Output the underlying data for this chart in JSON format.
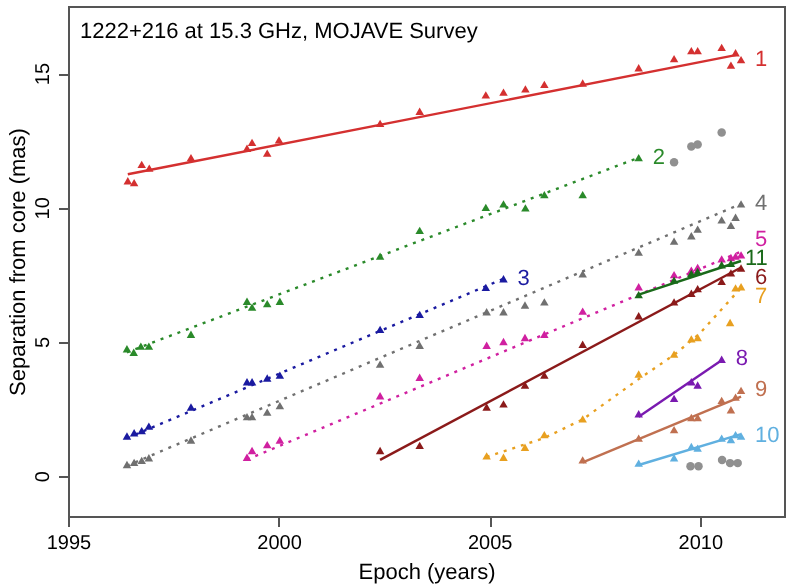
{
  "chart_data": {
    "type": "scatter",
    "title": "1222+216 at 15.3 GHz, MOJAVE Survey",
    "xlabel": "Epoch (years)",
    "ylabel": "Separation from core (mas)",
    "xlim": [
      1995,
      2012
    ],
    "ylim": [
      -1.5,
      17.5
    ],
    "xticks": [
      1995,
      2000,
      2005,
      2010
    ],
    "yticks": [
      0,
      5,
      10,
      15
    ],
    "series": [
      {
        "type": "line",
        "color": "#d43030",
        "line_style": "solid",
        "x": [
          1996.42,
          2010.85
        ],
        "values": [
          11.23,
          15.67
        ]
      },
      {
        "name": "1",
        "marker": "triangle",
        "color": "#d43030",
        "x": [
          1996.42,
          1996.57,
          1996.75,
          1996.93,
          1997.92,
          1999.25,
          1999.37,
          1999.73,
          2000.01,
          2002.41,
          2003.35,
          2004.92,
          2005.34,
          2005.86,
          2006.31,
          2007.22,
          2008.55,
          2009.39,
          2009.8,
          2009.95,
          2010.52,
          2010.74,
          2010.85,
          2010.98
        ],
        "values": [
          10.99,
          10.92,
          11.6,
          11.46,
          11.85,
          12.2,
          12.42,
          12.02,
          12.51,
          13.13,
          13.58,
          14.19,
          14.29,
          14.41,
          14.58,
          14.63,
          15.2,
          15.54,
          15.84,
          15.84,
          15.96,
          15.3,
          15.76,
          15.5
        ]
      },
      {
        "type": "line",
        "color": "#2a8a2a",
        "line_style": "dotted",
        "x": [
          1996.4,
          2008.55
        ],
        "values": [
          4.6,
          11.85
        ]
      },
      {
        "name": "2",
        "marker": "triangle",
        "color": "#2a8a2a",
        "x": [
          1996.4,
          1996.56,
          1996.73,
          1996.92,
          1997.92,
          1999.25,
          1999.37,
          1999.73,
          2000.03,
          2002.41,
          2003.35,
          2004.92,
          2005.34,
          2005.86,
          2006.31,
          2007.22,
          2008.55
        ],
        "values": [
          4.73,
          4.6,
          4.83,
          4.83,
          5.27,
          6.5,
          6.28,
          6.41,
          6.5,
          8.18,
          9.14,
          10.0,
          10.13,
          9.98,
          10.47,
          10.47,
          11.85
        ]
      },
      {
        "marker": "circle",
        "color": "#909090",
        "x": [
          2009.39,
          2009.8,
          2009.95,
          2010.52,
          2009.78,
          2009.97,
          2010.53,
          2010.72,
          2010.9
        ],
        "values": [
          11.68,
          12.27,
          12.34,
          12.79,
          0.35,
          0.35,
          0.59,
          0.47,
          0.47
        ]
      },
      {
        "type": "line",
        "color": "#1a1aa0",
        "line_style": "dotted",
        "x": [
          1996.4,
          2005.34
        ],
        "values": [
          1.4,
          7.34
        ]
      },
      {
        "name": "3",
        "marker": "triangle",
        "color": "#1a1aa0",
        "x": [
          1996.4,
          1996.57,
          1996.75,
          1996.92,
          1997.92,
          1999.25,
          1999.37,
          1999.73,
          2000.03,
          2002.41,
          2003.35,
          2004.92,
          2005.34
        ],
        "values": [
          1.48,
          1.6,
          1.68,
          1.85,
          2.56,
          3.5,
          3.5,
          3.64,
          3.75,
          5.45,
          6.01,
          7.02,
          7.34
        ]
      },
      {
        "type": "line",
        "color": "#707070",
        "line_style": "dotted",
        "x": [
          1996.4,
          2010.98
        ],
        "values": [
          0.37,
          10.13
        ]
      },
      {
        "name": "4",
        "marker": "triangle",
        "color": "#707070",
        "x": [
          1996.4,
          1996.57,
          1996.75,
          1996.92,
          1997.92,
          1999.25,
          1999.37,
          1999.73,
          2000.03,
          2002.41,
          2003.35,
          2004.94,
          2005.34,
          2005.85,
          2006.31,
          2007.22,
          2008.55,
          2009.39,
          2009.8,
          2009.95,
          2010.52,
          2010.74,
          2010.85,
          2010.98
        ],
        "values": [
          0.42,
          0.5,
          0.57,
          0.67,
          1.33,
          2.2,
          2.2,
          2.37,
          2.61,
          4.16,
          4.86,
          6.11,
          6.11,
          6.36,
          6.48,
          7.52,
          8.33,
          8.74,
          8.94,
          9.19,
          9.53,
          9.33,
          9.63,
          10.13
        ]
      },
      {
        "type": "line",
        "color": "#d020a0",
        "line_style": "dotted",
        "x": [
          1999.25,
          2010.98
        ],
        "values": [
          0.6,
          8.35
        ]
      },
      {
        "name": "5",
        "marker": "triangle",
        "color": "#d020a0",
        "x": [
          1999.25,
          1999.37,
          1999.73,
          2000.03,
          2002.41,
          2003.35,
          2004.94,
          2005.34,
          2005.85,
          2006.31,
          2007.22,
          2008.55,
          2009.39,
          2009.8,
          2009.95,
          2010.52,
          2010.74,
          2010.85,
          2010.98
        ],
        "values": [
          0.69,
          0.94,
          1.16,
          1.33,
          2.98,
          3.67,
          4.86,
          5.0,
          5.15,
          5.27,
          6.13,
          7.04,
          7.49,
          7.66,
          7.76,
          8.08,
          8.13,
          8.18,
          8.23
        ]
      },
      {
        "type": "line",
        "color": "#1a6a1a",
        "line_style": "solid",
        "x": [
          2008.55,
          2010.98
        ],
        "values": [
          6.75,
          8.0
        ]
      },
      {
        "name": "11",
        "marker": "triangle",
        "color": "#1a6a1a",
        "x": [
          2008.55,
          2009.39,
          2009.8,
          2009.95,
          2010.52,
          2010.74
        ],
        "values": [
          6.75,
          7.29,
          7.54,
          7.61,
          7.86,
          7.91
        ]
      },
      {
        "type": "line",
        "color": "#8b1a1a",
        "line_style": "solid",
        "x": [
          2002.41,
          2010.98
        ],
        "values": [
          0.59,
          7.76
        ]
      },
      {
        "name": "6",
        "marker": "triangle",
        "color": "#8b1a1a",
        "x": [
          2002.41,
          2003.35,
          2004.94,
          2005.34,
          2005.85,
          2006.31,
          2007.22,
          2008.55,
          2009.39,
          2009.8,
          2009.95,
          2010.52,
          2010.74,
          2010.98
        ],
        "values": [
          0.94,
          1.13,
          2.56,
          2.68,
          3.38,
          3.75,
          4.9,
          5.96,
          6.48,
          6.8,
          6.97,
          7.24,
          7.56,
          7.74
        ]
      },
      {
        "type": "line",
        "color": "#e8a020",
        "line_style": "dotted",
        "x": [
          2004.94,
          2006.3,
          2007.22,
          2008.55,
          2009.39,
          2010.0,
          2010.98
        ],
        "values": [
          0.7,
          1.4,
          2.1,
          3.6,
          4.5,
          5.3,
          7.0
        ]
      },
      {
        "name": "7",
        "marker": "triangle",
        "color": "#e8a020",
        "x": [
          2004.94,
          2005.34,
          2005.85,
          2006.31,
          2007.22,
          2008.55,
          2009.39,
          2009.8,
          2009.95,
          2010.72,
          2010.85,
          2010.98
        ],
        "values": [
          0.74,
          0.69,
          1.06,
          1.53,
          2.12,
          3.79,
          4.53,
          5.1,
          5.15,
          5.71,
          7.0,
          7.04
        ]
      },
      {
        "type": "line",
        "color": "#7a1ab0",
        "line_style": "solid",
        "x": [
          2008.55,
          2010.52
        ],
        "values": [
          2.2,
          4.3
        ]
      },
      {
        "name": "8",
        "marker": "triangle",
        "color": "#7a1ab0",
        "x": [
          2008.55,
          2009.39,
          2009.8,
          2009.95,
          2010.52
        ],
        "values": [
          2.31,
          2.88,
          3.5,
          3.38,
          4.34
        ]
      },
      {
        "type": "line",
        "color": "#c07050",
        "line_style": "solid",
        "x": [
          2007.22,
          2010.98
        ],
        "values": [
          0.5,
          2.95
        ]
      },
      {
        "name": "9",
        "marker": "triangle",
        "color": "#c07050",
        "x": [
          2007.22,
          2008.55,
          2009.39,
          2009.8,
          2009.95,
          2010.52,
          2010.74,
          2010.85,
          2010.98
        ],
        "values": [
          0.59,
          1.4,
          1.72,
          2.17,
          2.17,
          2.81,
          2.46,
          2.93,
          3.18
        ]
      },
      {
        "type": "line",
        "color": "#60b0e0",
        "line_style": "solid",
        "x": [
          2008.55,
          2010.98
        ],
        "values": [
          0.4,
          1.55
        ]
      },
      {
        "name": "10",
        "marker": "triangle",
        "color": "#60b0e0",
        "x": [
          2008.55,
          2009.39,
          2009.8,
          2009.95,
          2010.52,
          2010.74,
          2010.85,
          2010.98
        ],
        "values": [
          0.47,
          0.67,
          1.09,
          1.03,
          1.4,
          1.35,
          1.53,
          1.48
        ]
      }
    ]
  }
}
